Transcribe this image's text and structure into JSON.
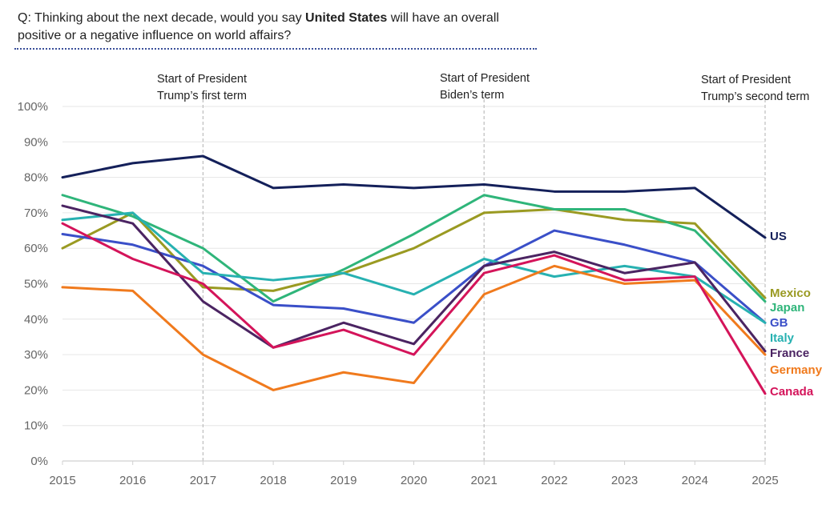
{
  "question": {
    "prefix": "Q: Thinking about the next decade, would you say ",
    "bold": "United States",
    "suffix": " will have an overall positive or a negative influence on world affairs?"
  },
  "chart_data": {
    "type": "line",
    "title": "",
    "xlabel": "",
    "ylabel": "",
    "x": [
      2015,
      2016,
      2017,
      2018,
      2019,
      2020,
      2021,
      2022,
      2023,
      2024,
      2025
    ],
    "ylim": [
      0,
      100
    ],
    "yticks": [
      0,
      10,
      20,
      30,
      40,
      50,
      60,
      70,
      80,
      90,
      100
    ],
    "ytick_labels": [
      "0%",
      "10%",
      "20%",
      "30%",
      "40%",
      "50%",
      "60%",
      "70%",
      "80%",
      "90%",
      "100%"
    ],
    "grid": true,
    "legend": "direct labels at right end of lines",
    "annotations": [
      {
        "x": 2017,
        "lines": [
          "Start of President",
          "Trump’s first term"
        ]
      },
      {
        "x": 2021,
        "lines": [
          "Start of President",
          "Biden’s term"
        ]
      },
      {
        "x": 2025,
        "lines": [
          "Start of President",
          "Trump’s second term"
        ]
      }
    ],
    "series": [
      {
        "name": "US",
        "color": "#14205a",
        "values": [
          80,
          84,
          86,
          77,
          78,
          77,
          78,
          76,
          76,
          77,
          63
        ]
      },
      {
        "name": "Mexico",
        "color": "#9a9a22",
        "values": [
          60,
          70,
          49,
          48,
          53,
          60,
          70,
          71,
          68,
          67,
          46
        ]
      },
      {
        "name": "Japan",
        "color": "#2fb57a",
        "values": [
          75,
          69,
          60,
          45,
          54,
          64,
          75,
          71,
          71,
          65,
          45
        ]
      },
      {
        "name": "GB",
        "color": "#3a4fc8",
        "values": [
          64,
          61,
          55,
          44,
          43,
          39,
          55,
          65,
          61,
          56,
          39
        ]
      },
      {
        "name": "Italy",
        "color": "#27b1b1",
        "values": [
          68,
          70,
          53,
          51,
          53,
          47,
          57,
          52,
          55,
          52,
          39
        ]
      },
      {
        "name": "France",
        "color": "#4b2462",
        "values": [
          72,
          67,
          45,
          32,
          39,
          33,
          55,
          59,
          53,
          56,
          31
        ]
      },
      {
        "name": "Germany",
        "color": "#f07a1d",
        "values": [
          49,
          48,
          30,
          20,
          25,
          22,
          47,
          55,
          50,
          51,
          30
        ]
      },
      {
        "name": "Canada",
        "color": "#d4145a",
        "values": [
          67,
          57,
          50,
          32,
          37,
          30,
          53,
          58,
          51,
          52,
          19
        ]
      }
    ]
  }
}
